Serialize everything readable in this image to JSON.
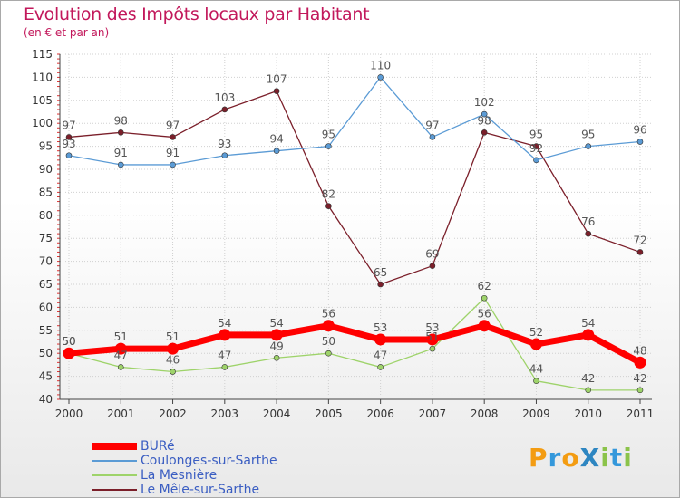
{
  "header": {
    "title": "Evolution des Impôts locaux par Habitant",
    "subtitle": "(en € et par an)"
  },
  "logo": {
    "text": "ProXiti",
    "letters": [
      "P",
      "r",
      "o",
      "X",
      "i",
      "t",
      "i"
    ],
    "colors": [
      "#f39c12",
      "#3498db",
      "#f39c12",
      "#2e86c1",
      "#8bc34a",
      "#3498db",
      "#8bc34a"
    ]
  },
  "chart_data": {
    "type": "line",
    "title": "Evolution des Impôts locaux par Habitant",
    "subtitle": "(en € et par an)",
    "xlabel": "",
    "ylabel": "",
    "categories": [
      "2000",
      "2001",
      "2002",
      "2003",
      "2004",
      "2005",
      "2006",
      "2007",
      "2008",
      "2009",
      "2010",
      "2011"
    ],
    "ylim": [
      40,
      115
    ],
    "yticks": [
      40,
      45,
      50,
      55,
      60,
      65,
      70,
      75,
      80,
      85,
      90,
      95,
      100,
      105,
      110,
      115
    ],
    "grid": true,
    "legend_position": "bottom-left",
    "series": [
      {
        "name": "BURé",
        "color": "#ff0000",
        "values": [
          50,
          51,
          51,
          54,
          54,
          56,
          53,
          53,
          56,
          52,
          54,
          48
        ]
      },
      {
        "name": "Coulonges-sur-Sarthe",
        "color": "#5b9bd5",
        "values": [
          93,
          91,
          91,
          93,
          94,
          95,
          110,
          97,
          102,
          92,
          95,
          96
        ]
      },
      {
        "name": "La Mesnière",
        "color": "#9ed36a",
        "values": [
          50,
          47,
          46,
          47,
          49,
          50,
          47,
          51,
          62,
          44,
          42,
          42
        ]
      },
      {
        "name": "Le Mêle-sur-Sarthe",
        "color": "#7b1f2a",
        "values": [
          97,
          98,
          97,
          103,
          107,
          82,
          65,
          69,
          98,
          95,
          76,
          72
        ]
      }
    ]
  }
}
